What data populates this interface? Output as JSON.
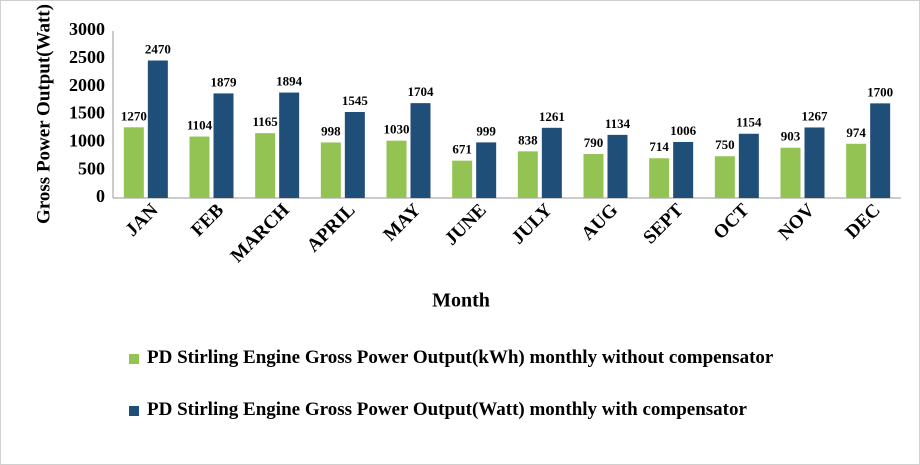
{
  "chart_data": {
    "type": "bar",
    "y_label": "Gross Power Output(Watt)",
    "x_label": "Month",
    "categories": [
      "JAN",
      "FEB",
      "MARCH",
      "APRIL",
      "MAY",
      "JUNE",
      "JULY",
      "AUG",
      "SEPT",
      "OCT",
      "NOV",
      "DEC"
    ],
    "series": [
      {
        "name": "PD Stirling Engine Gross Power Output(kWh) monthly without compensator",
        "color": "#92c353",
        "values": [
          1270,
          1104,
          1165,
          998,
          1030,
          671,
          838,
          790,
          714,
          750,
          903,
          974
        ]
      },
      {
        "name": "PD Stirling Engine Gross Power Output(Watt) monthly with compensator",
        "color": "#1f4e79",
        "values": [
          2470,
          1879,
          1894,
          1545,
          1704,
          999,
          1261,
          1134,
          1006,
          1154,
          1267,
          1700
        ]
      }
    ],
    "ylim": [
      0,
      3000
    ],
    "yticks": [
      0,
      500,
      1000,
      1500,
      2000,
      2500,
      3000
    ],
    "grid": false,
    "legend": "bottom"
  }
}
